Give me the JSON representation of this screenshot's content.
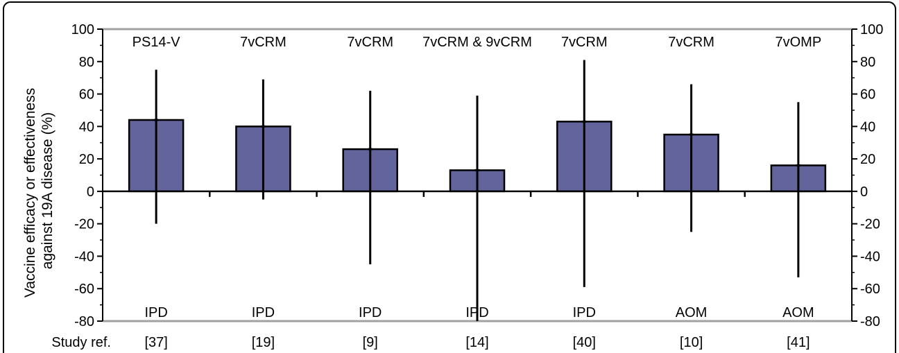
{
  "colors": {
    "bar_fill": "#62649b",
    "bar_stroke": "#000000",
    "frame": "#000000",
    "plot_border": "#a0a0a0",
    "error_bar": "#000000"
  },
  "chart_data": {
    "type": "bar",
    "ylabel": "Vaccine efficacy or effectiveness against 19A disease (%)",
    "ylabel_lines": [
      "Vaccine efficacy or effectiveness",
      "against 19A disease (%)"
    ],
    "ylim": [
      -80,
      100
    ],
    "yticks": [
      100,
      80,
      60,
      40,
      20,
      0,
      -20,
      -40,
      -60,
      -80
    ],
    "ytick_labels": [
      "100",
      "80",
      "60",
      "40",
      "20",
      "0",
      "-20",
      "-40",
      "-60",
      "-80"
    ],
    "secondary_y_axis": true,
    "grid": false,
    "legend": "none",
    "ref_caption": "Study ref.",
    "categories": [
      "[37]",
      "[19]",
      "[9]",
      "[14]",
      "[40]",
      "[10]",
      "[41]"
    ],
    "vaccines": [
      "PS14-V",
      "7vCRM",
      "7vCRM",
      "7vCRM & 9vCRM",
      "7vCRM",
      "7vCRM",
      "7vOMP"
    ],
    "outcomes": [
      "IPD",
      "IPD",
      "IPD",
      "IPD",
      "IPD",
      "AOM",
      "AOM"
    ],
    "values": [
      44,
      40,
      26,
      13,
      43,
      35,
      16
    ],
    "error_low": [
      -20,
      -5,
      -45,
      -80,
      -59,
      -25,
      -53
    ],
    "error_high": [
      75,
      69,
      62,
      59,
      81,
      66,
      55
    ]
  }
}
